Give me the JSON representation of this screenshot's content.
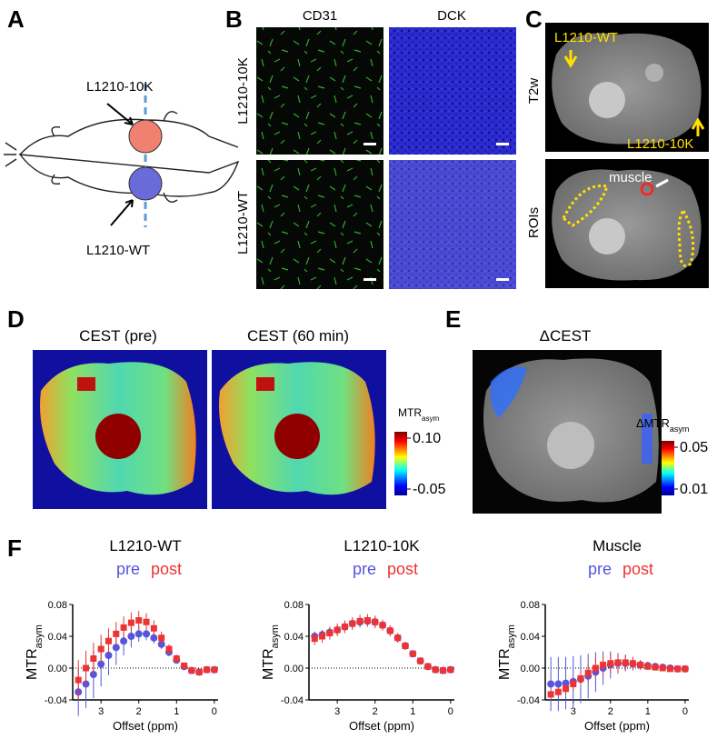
{
  "panels": {
    "panel_a": {
      "label": "A",
      "site_top": "L1210-10K",
      "site_bottom": "L1210-WT"
    },
    "panel_b": {
      "label": "B",
      "columns": [
        "CD31",
        "DCK"
      ],
      "rows": [
        "L1210-10K",
        "L1210-WT"
      ]
    },
    "panel_c": {
      "label": "C",
      "rows": [
        "T2w",
        "ROIs"
      ],
      "annotations": [
        "L1210-WT",
        "L1210-10K",
        "muscle"
      ]
    },
    "panel_d": {
      "label": "D",
      "titles": [
        "CEST (pre)",
        "CEST (60 min)"
      ],
      "colorbar": {
        "label": "MTR",
        "label_sub": "asym",
        "lim": [
          -0.05,
          0.1
        ],
        "ticks": [
          {
            "value": 0.1,
            "label": "0.10"
          },
          -0.05
        ]
      }
    },
    "panel_e": {
      "label": "E",
      "title": "ΔCEST",
      "colorbar": {
        "label": "ΔMTR",
        "label_sub": "asym",
        "lim": [
          0.01,
          0.05
        ],
        "ticks": [
          0.05,
          0.01
        ]
      }
    },
    "panel_f": {
      "label": "F"
    }
  },
  "chart_data": [
    {
      "type": "scatter",
      "title": "L1210-WT",
      "x_label": "Offset (ppm)",
      "y_label": "MTR",
      "y_label_sub": "asym",
      "x": [
        3.6,
        3.4,
        3.2,
        3.0,
        2.8,
        2.6,
        2.4,
        2.2,
        2.0,
        1.8,
        1.6,
        1.4,
        1.2,
        1.0,
        0.8,
        0.6,
        0.4,
        0.2,
        0.0
      ],
      "xlim": [
        3.75,
        -0.1
      ],
      "xticks": [
        3,
        2,
        1,
        0
      ],
      "ylim": [
        -0.04,
        0.08
      ],
      "yticks": [
        {
          "value": 0.08,
          "label": "0.08"
        },
        0.04,
        {
          "value": 0,
          "label": "0.00"
        },
        -0.04
      ],
      "zero_line": true,
      "series": [
        {
          "name": "pre",
          "color": "#5555dd",
          "marker": "circle",
          "values": [
            -0.03,
            -0.02,
            -0.008,
            0.005,
            0.016,
            0.026,
            0.034,
            0.04,
            0.043,
            0.043,
            0.038,
            0.03,
            0.02,
            0.01,
            0.002,
            -0.003,
            -0.005,
            -0.002,
            -0.002
          ],
          "errors": [
            0.03,
            0.03,
            0.03,
            0.028,
            0.025,
            0.022,
            0.018,
            0.014,
            0.01,
            0.008,
            0.007,
            0.006,
            0.005,
            0.004,
            0.003,
            0.002,
            0.002,
            0.002,
            0.002
          ]
        },
        {
          "name": "post",
          "color": "#ee3333",
          "marker": "square",
          "values": [
            -0.015,
            0.0,
            0.012,
            0.024,
            0.034,
            0.043,
            0.051,
            0.057,
            0.06,
            0.058,
            0.05,
            0.038,
            0.024,
            0.012,
            0.003,
            -0.003,
            -0.005,
            -0.002,
            -0.002
          ],
          "errors": [
            0.025,
            0.022,
            0.02,
            0.018,
            0.016,
            0.015,
            0.014,
            0.013,
            0.012,
            0.011,
            0.01,
            0.008,
            0.006,
            0.005,
            0.003,
            0.002,
            0.002,
            0.002,
            0.002
          ]
        }
      ]
    },
    {
      "type": "scatter",
      "title": "L1210-10K",
      "x_label": "Offset (ppm)",
      "y_label": "MTR",
      "y_label_sub": "asym",
      "x": [
        3.6,
        3.4,
        3.2,
        3.0,
        2.8,
        2.6,
        2.4,
        2.2,
        2.0,
        1.8,
        1.6,
        1.4,
        1.2,
        1.0,
        0.8,
        0.6,
        0.4,
        0.2,
        0.0
      ],
      "xlim": [
        3.75,
        -0.1
      ],
      "xticks": [
        3,
        2,
        1,
        0
      ],
      "ylim": [
        -0.04,
        0.08
      ],
      "yticks": [
        {
          "value": 0.08,
          "label": "0.08"
        },
        0.04,
        {
          "value": 0,
          "label": "0.00"
        },
        -0.04
      ],
      "zero_line": true,
      "series": [
        {
          "name": "pre",
          "color": "#5555dd",
          "marker": "circle",
          "values": [
            0.04,
            0.042,
            0.045,
            0.048,
            0.052,
            0.056,
            0.058,
            0.059,
            0.058,
            0.054,
            0.047,
            0.038,
            0.028,
            0.018,
            0.009,
            0.002,
            -0.002,
            -0.003,
            -0.002
          ],
          "errors": [
            0.006,
            0.006,
            0.006,
            0.006,
            0.006,
            0.006,
            0.006,
            0.006,
            0.006,
            0.005,
            0.005,
            0.005,
            0.004,
            0.004,
            0.003,
            0.003,
            0.002,
            0.002,
            0.002
          ]
        },
        {
          "name": "post",
          "color": "#ee3333",
          "marker": "square",
          "values": [
            0.037,
            0.04,
            0.044,
            0.048,
            0.052,
            0.056,
            0.059,
            0.06,
            0.058,
            0.054,
            0.047,
            0.038,
            0.028,
            0.018,
            0.009,
            0.002,
            -0.002,
            -0.003,
            -0.002
          ],
          "errors": [
            0.008,
            0.008,
            0.008,
            0.008,
            0.008,
            0.008,
            0.008,
            0.008,
            0.008,
            0.007,
            0.007,
            0.006,
            0.005,
            0.004,
            0.003,
            0.003,
            0.002,
            0.002,
            0.002
          ]
        }
      ]
    },
    {
      "type": "scatter",
      "title": "Muscle",
      "x_label": "Offset (ppm)",
      "y_label": "MTR",
      "y_label_sub": "asym",
      "x": [
        3.6,
        3.4,
        3.2,
        3.0,
        2.8,
        2.6,
        2.4,
        2.2,
        2.0,
        1.8,
        1.6,
        1.4,
        1.2,
        1.0,
        0.8,
        0.6,
        0.4,
        0.2,
        0.0
      ],
      "xlim": [
        3.75,
        -0.1
      ],
      "xticks": [
        3,
        2,
        1,
        0
      ],
      "ylim": [
        -0.04,
        0.08
      ],
      "yticks": [
        {
          "value": 0.08,
          "label": "0.08"
        },
        0.04,
        {
          "value": 0,
          "label": "0.00"
        },
        -0.04
      ],
      "zero_line": true,
      "series": [
        {
          "name": "pre",
          "color": "#5555dd",
          "marker": "circle",
          "values": [
            -0.02,
            -0.02,
            -0.019,
            -0.017,
            -0.014,
            -0.01,
            -0.005,
            0.0,
            0.004,
            0.006,
            0.006,
            0.005,
            0.004,
            0.003,
            0.002,
            0.001,
            0.0,
            -0.001,
            -0.001
          ],
          "errors": [
            0.034,
            0.034,
            0.033,
            0.032,
            0.03,
            0.028,
            0.025,
            0.021,
            0.017,
            0.013,
            0.01,
            0.008,
            0.006,
            0.005,
            0.004,
            0.003,
            0.002,
            0.002,
            0.002
          ]
        },
        {
          "name": "post",
          "color": "#ee3333",
          "marker": "square",
          "values": [
            -0.033,
            -0.03,
            -0.026,
            -0.02,
            -0.013,
            -0.006,
            0.0,
            0.004,
            0.006,
            0.007,
            0.007,
            0.006,
            0.004,
            0.002,
            0.001,
            0.0,
            -0.001,
            -0.001,
            -0.001
          ],
          "errors": [
            0.004,
            0.005,
            0.006,
            0.008,
            0.01,
            0.012,
            0.013,
            0.013,
            0.012,
            0.011,
            0.01,
            0.008,
            0.006,
            0.004,
            0.003,
            0.002,
            0.002,
            0.002,
            0.002
          ]
        }
      ]
    }
  ]
}
